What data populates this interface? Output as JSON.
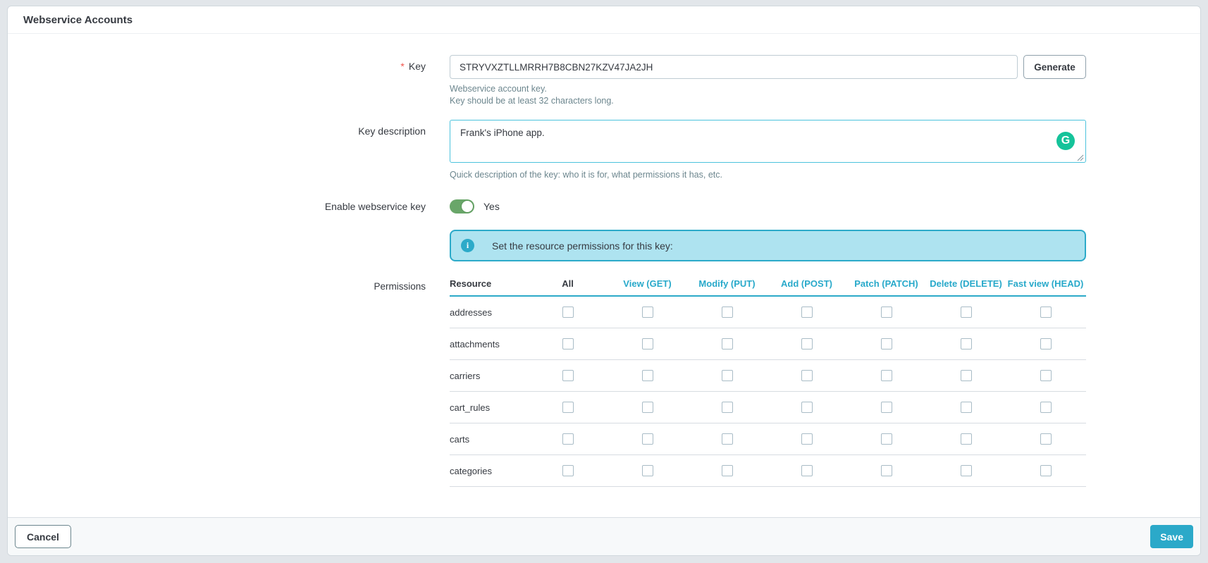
{
  "page": {
    "title": "Webservice Accounts"
  },
  "form": {
    "key": {
      "label": "Key",
      "required_marker": "*",
      "value": "STRYVXZTLLMRRH7B8CBN27KZV47JA2JH",
      "generate_label": "Generate",
      "help_line1": "Webservice account key.",
      "help_line2": "Key should be at least 32 characters long."
    },
    "description": {
      "label": "Key description",
      "value": "Frank's iPhone app.",
      "help": "Quick description of the key: who it is for, what permissions it has, etc.",
      "grammarly_glyph": "G"
    },
    "enable": {
      "label": "Enable webservice key",
      "state_label": "Yes",
      "enabled": true
    },
    "permissions": {
      "label": "Permissions",
      "alert_text": "Set the resource permissions for this key:",
      "info_glyph": "i",
      "columns": [
        "Resource",
        "All",
        "View (GET)",
        "Modify (PUT)",
        "Add (POST)",
        "Patch (PATCH)",
        "Delete (DELETE)",
        "Fast view (HEAD)"
      ],
      "rows": [
        {
          "resource": "addresses",
          "checks": [
            false,
            false,
            false,
            false,
            false,
            false,
            false
          ]
        },
        {
          "resource": "attachments",
          "checks": [
            false,
            false,
            false,
            false,
            false,
            false,
            false
          ]
        },
        {
          "resource": "carriers",
          "checks": [
            false,
            false,
            false,
            false,
            false,
            false,
            false
          ]
        },
        {
          "resource": "cart_rules",
          "checks": [
            false,
            false,
            false,
            false,
            false,
            false,
            false
          ]
        },
        {
          "resource": "carts",
          "checks": [
            false,
            false,
            false,
            false,
            false,
            false,
            false
          ]
        },
        {
          "resource": "categories",
          "checks": [
            false,
            false,
            false,
            false,
            false,
            false,
            false
          ]
        }
      ]
    }
  },
  "footer": {
    "cancel_label": "Cancel",
    "save_label": "Save"
  },
  "icons": [
    "info-icon",
    "grammarly-icon",
    "resize-grip-icon"
  ],
  "colors": {
    "accent": "#2ba9c9",
    "alert_bg": "#aee3f0",
    "toggle_on": "#69a669",
    "grammarly_green": "#15c39a",
    "required_red": "#f0544c",
    "header_cyan": "#28a9ca"
  }
}
